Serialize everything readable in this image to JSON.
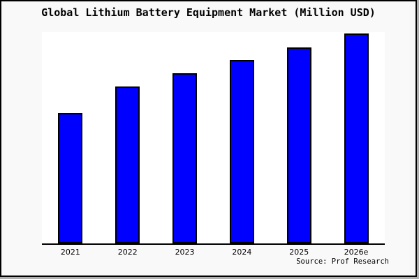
{
  "frame": {
    "background": "#f9f9f9",
    "border_color": "#000000",
    "shadow_color": "#b0b0b0"
  },
  "source": {
    "label": "Source: Prof Research"
  },
  "chart_data": {
    "type": "bar",
    "title": "Global Lithium Battery Equipment Market (Million USD)",
    "categories": [
      "2021",
      "2022",
      "2023",
      "2024",
      "2025",
      "2026e"
    ],
    "values": [
      187,
      225,
      244,
      263,
      281,
      301
    ],
    "value_unit": "relative-pixel-height (no numeric y-axis shown in image)",
    "xlabel": "",
    "ylabel": "",
    "y_tick_labels": [],
    "grid": false,
    "legend": false,
    "bar_color": "#0000ff",
    "bar_outline_color": "#000000",
    "plot_background": "#ffffff",
    "axis_line_color": "#000000"
  }
}
